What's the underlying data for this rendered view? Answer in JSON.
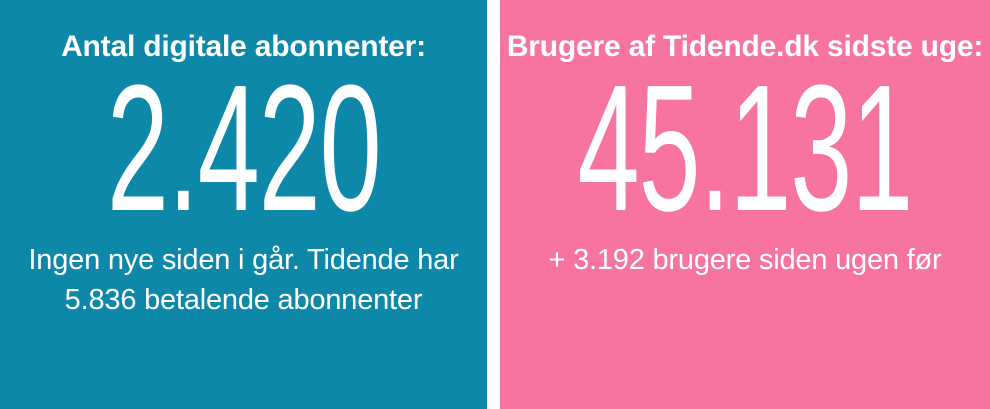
{
  "colors": {
    "left_bg": "#0e88a9",
    "right_bg": "#f673a2",
    "divider": "#ffffff",
    "text": "#ffffff"
  },
  "left_panel": {
    "heading": "Antal digitale abonnenter:",
    "value": "2.420",
    "note_line1": "Ingen nye siden i går. Tidende har",
    "note_line2": "5.836 betalende abonnenter"
  },
  "right_panel": {
    "heading": "Brugere af Tidende.dk sidste uge:",
    "value": "45.131",
    "note": "+ 3.192 brugere siden ugen før"
  }
}
